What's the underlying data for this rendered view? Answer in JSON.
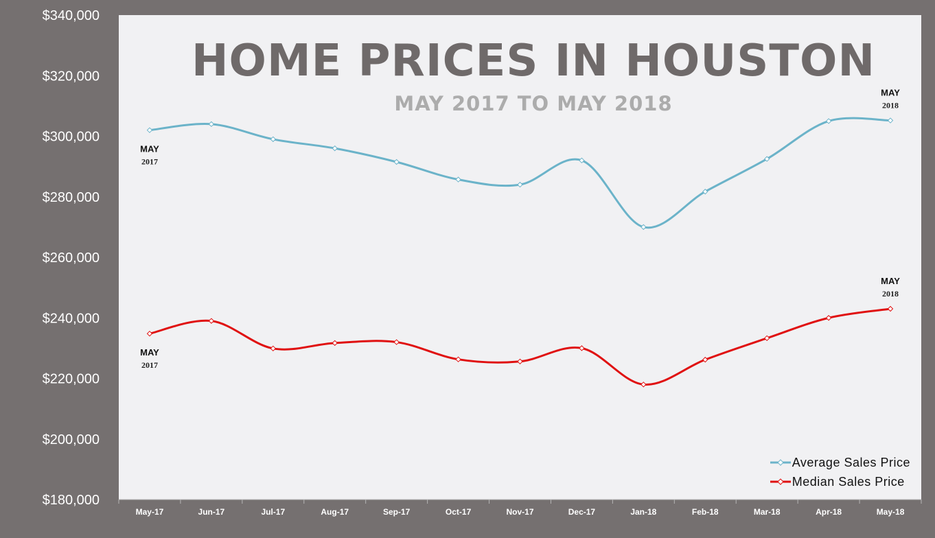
{
  "chart_data": {
    "type": "line",
    "title": "HOME PRICES IN HOUSTON",
    "subtitle": "MAY 2017 TO MAY 2018",
    "categories": [
      "May-17",
      "Jun-17",
      "Jul-17",
      "Aug-17",
      "Sep-17",
      "Oct-17",
      "Nov-17",
      "Dec-17",
      "Jan-18",
      "Feb-18",
      "Mar-18",
      "Apr-18",
      "May-18"
    ],
    "series": [
      {
        "name": "Average Sales Price",
        "color": "#6bb3c9",
        "values": [
          302000,
          304000,
          299000,
          296000,
          291500,
          285700,
          284000,
          292000,
          270000,
          281700,
          292500,
          305000,
          305200
        ]
      },
      {
        "name": "Median Sales Price",
        "color": "#e01010",
        "values": [
          234800,
          239000,
          229900,
          231700,
          232000,
          226300,
          225600,
          230000,
          218000,
          226200,
          233300,
          240000,
          243000
        ]
      }
    ],
    "y_ticks": [
      "$340,000",
      "$320,000",
      "$300,000",
      "$280,000",
      "$260,000",
      "$240,000",
      "$220,000",
      "$200,000",
      "$180,000"
    ],
    "y_tick_values": [
      340000,
      320000,
      300000,
      280000,
      260000,
      240000,
      220000,
      200000,
      180000
    ],
    "ylim": [
      180000,
      340000
    ],
    "grid": false,
    "legend_position": "bottom-right",
    "annotations": [
      {
        "series": 0,
        "point": 0,
        "line1": "MAY",
        "line2": "2017",
        "placement": "below"
      },
      {
        "series": 0,
        "point": 12,
        "line1": "MAY",
        "line2": "2018",
        "placement": "above"
      },
      {
        "series": 1,
        "point": 0,
        "line1": "MAY",
        "line2": "2017",
        "placement": "below"
      },
      {
        "series": 1,
        "point": 12,
        "line1": "MAY",
        "line2": "2018",
        "placement": "above"
      }
    ]
  }
}
